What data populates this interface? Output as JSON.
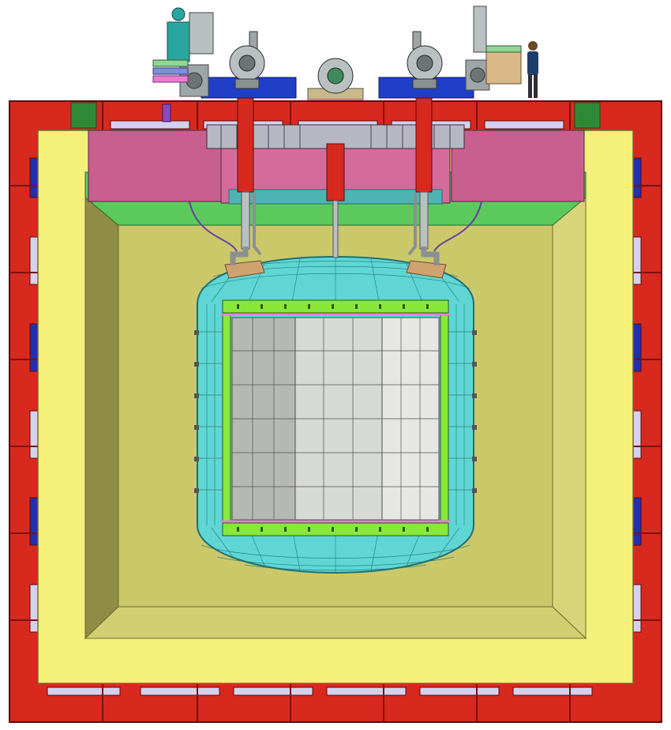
{
  "colors": {
    "steel_frame": "#d8291f",
    "steel_frame_dark": "#8c1410",
    "yellow_shield": "#f5f07a",
    "inner_cavity": "#cbc86a",
    "inner_wall_shade": "#8f8c45",
    "pink_block": "#c8608f",
    "green_layer": "#5cc95c",
    "teal_vessel": "#5fd6d3",
    "teal_grid": "#1e6f73",
    "tpc_panel": "#d7d9d6",
    "tpc_grid": "#505050",
    "tpc_frame": "#88e83a",
    "magenta_ring": "#e77fe0",
    "blue_deck": "#1f3fc8",
    "lavender_slot": "#d6d0ef",
    "tan_bracket": "#cfa26f",
    "gray_pipe": "#b9c0c2",
    "purple_cable": "#6a3fa0"
  },
  "components": [
    "steel-support-frame",
    "outer-shield-layer",
    "inner-shield-cavity",
    "cryostat-lid-block",
    "cryostat-insulation-layer",
    "cryogenic-vessel",
    "tpc-field-cage",
    "feedthrough-chimney-left",
    "feedthrough-chimney-center",
    "feedthrough-chimney-right",
    "top-deck-equipment",
    "human-figure-scale"
  ]
}
